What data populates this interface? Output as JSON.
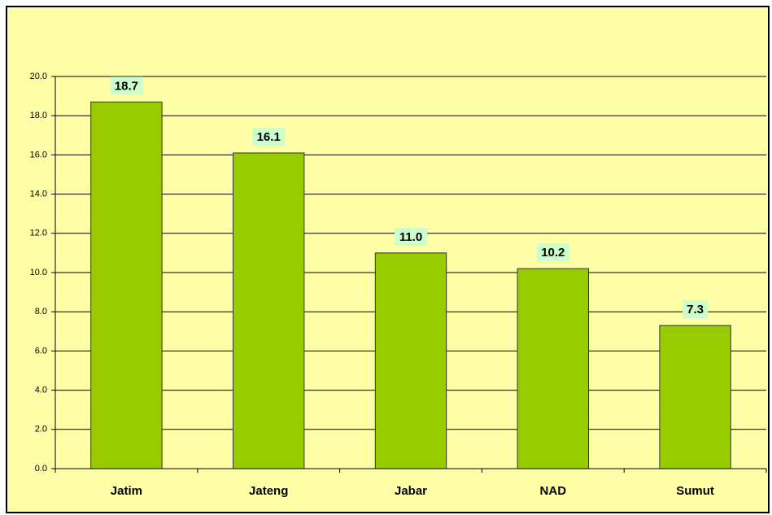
{
  "chart_data": {
    "type": "bar",
    "categories": [
      "Jatim",
      "Jateng",
      "Jabar",
      "NAD",
      "Sumut"
    ],
    "values": [
      18.7,
      16.1,
      11.0,
      10.2,
      7.3
    ],
    "value_labels": [
      "18.7",
      "16.1",
      "11.0",
      "10.2",
      "7.3"
    ],
    "color": "#99cc00",
    "ylim": [
      0,
      20
    ],
    "yticks": [
      {
        "value": 0,
        "label": "0.0"
      },
      {
        "value": 2,
        "label": "2.0"
      },
      {
        "value": 4,
        "label": "4.0"
      },
      {
        "value": 6,
        "label": "6.0"
      },
      {
        "value": 8,
        "label": "8.0"
      },
      {
        "value": 10,
        "label": "10.0"
      },
      {
        "value": 12,
        "label": "12.0"
      },
      {
        "value": 14,
        "label": "14.0"
      },
      {
        "value": 16,
        "label": "16.0"
      },
      {
        "value": 18,
        "label": "18.0"
      },
      {
        "value": 20,
        "label": "20.0"
      }
    ],
    "grid": true
  }
}
